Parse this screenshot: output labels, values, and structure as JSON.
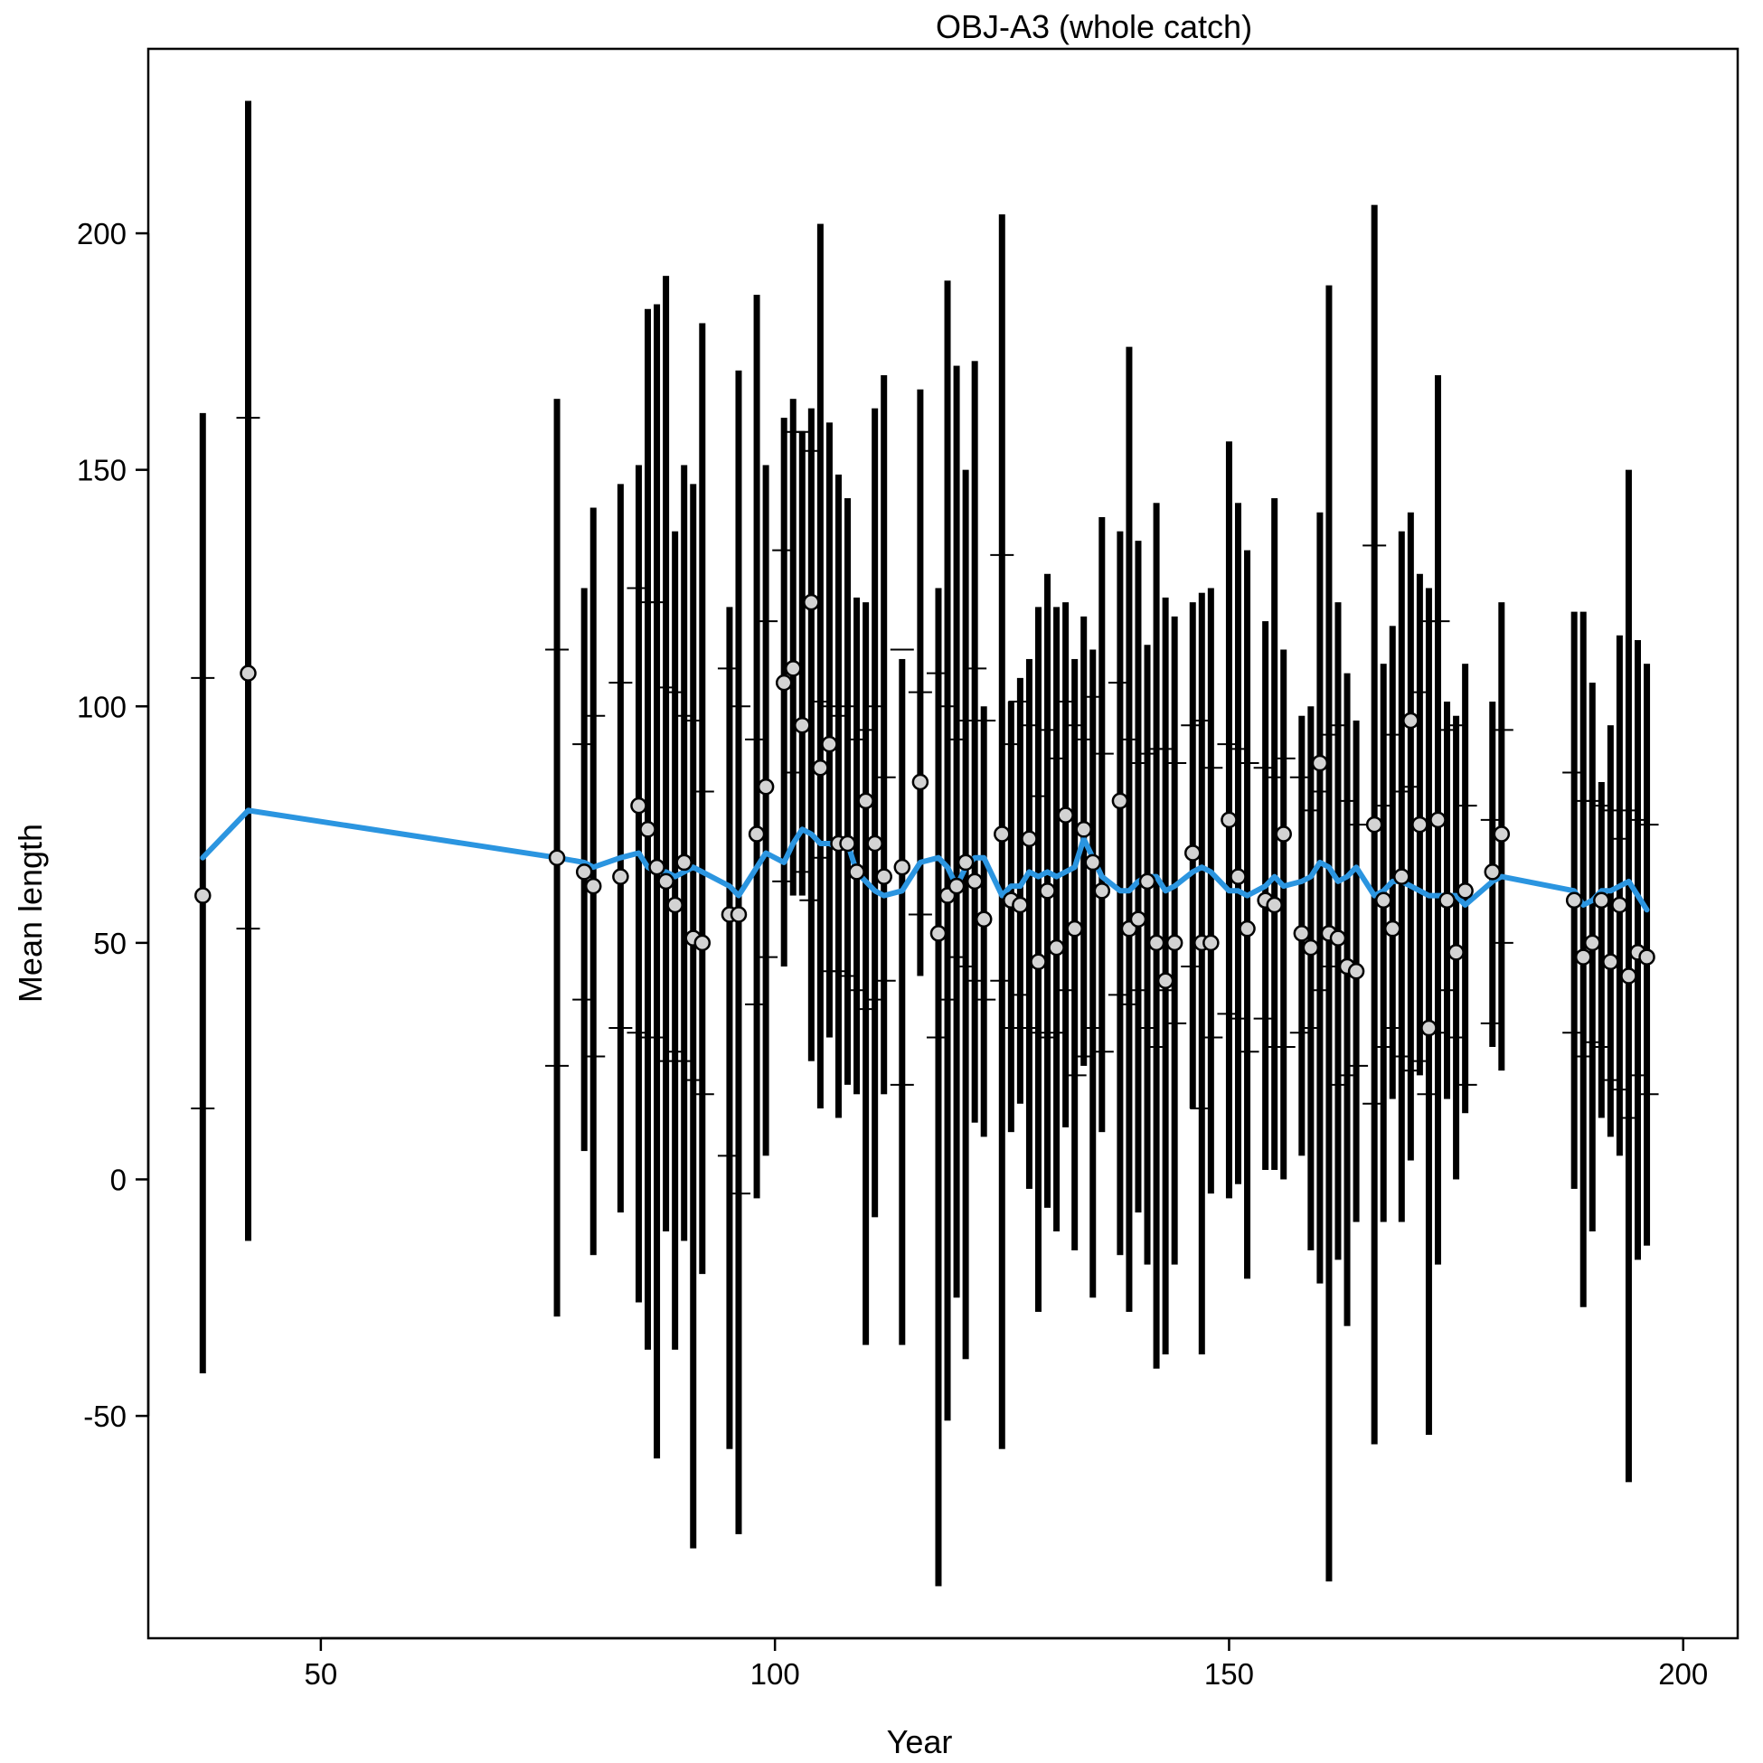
{
  "chart_data": {
    "type": "scatter",
    "title": "OBJ-A3 (whole catch)",
    "xlabel": "Year",
    "ylabel": "Mean length",
    "xlim": [
      31,
      206
    ],
    "ylim": [
      -97,
      239
    ],
    "xticks": [
      50,
      100,
      150,
      200
    ],
    "yticks": [
      -50,
      0,
      50,
      100,
      150,
      200
    ],
    "xtick_labels": [
      "50",
      "100",
      "150",
      "200"
    ],
    "ytick_labels": [
      "-50",
      "0",
      "50",
      "100",
      "150",
      "200"
    ],
    "grid": false,
    "legend": "none",
    "colors": {
      "fit_line": "#2b95e0",
      "bars": "#000000",
      "points_fill": "#d3d3d3",
      "points_edge": "#000000"
    },
    "series": [
      {
        "kind": "observed",
        "x": [
          37,
          42,
          76,
          79,
          80,
          83,
          85,
          86,
          87,
          88,
          89,
          90,
          91,
          92,
          95,
          96,
          98,
          99,
          101,
          102,
          103,
          104,
          105,
          106,
          107,
          108,
          109,
          110,
          111,
          112,
          114,
          116,
          118,
          119,
          120,
          121,
          122,
          123,
          125,
          126,
          127,
          128,
          129,
          130,
          131,
          132,
          133,
          134,
          135,
          136,
          138,
          139,
          140,
          141,
          142,
          143,
          144,
          146,
          147,
          148,
          150,
          151,
          152,
          154,
          155,
          156,
          158,
          159,
          160,
          161,
          162,
          163,
          164,
          166,
          167,
          168,
          169,
          170,
          171,
          172,
          173,
          174,
          175,
          176,
          179,
          180,
          188,
          189,
          190,
          191,
          192,
          193,
          194,
          195,
          196
        ],
        "y": [
          60,
          107,
          68,
          65,
          62,
          64,
          79,
          74,
          66,
          63,
          58,
          67,
          51,
          50,
          56,
          56,
          73,
          83,
          105,
          108,
          96,
          122,
          87,
          92,
          71,
          71,
          65,
          80,
          71,
          64,
          66,
          84,
          52,
          60,
          62,
          67,
          63,
          55,
          73,
          59,
          58,
          72,
          46,
          61,
          49,
          77,
          53,
          74,
          67,
          61,
          80,
          53,
          55,
          63,
          50,
          42,
          50,
          69,
          50,
          50,
          76,
          64,
          53,
          59,
          58,
          73,
          52,
          49,
          88,
          52,
          51,
          45,
          44,
          75,
          59,
          53,
          64,
          97,
          75,
          32,
          76,
          59,
          48,
          61,
          65,
          73,
          59,
          47,
          50,
          59,
          46,
          58,
          43,
          48,
          47
        ],
        "whisker_low": [
          -41,
          -13,
          -29,
          6,
          -16,
          -7,
          -26,
          -36,
          -59,
          -11,
          -36,
          -13,
          -78,
          -20,
          -57,
          -75,
          -4,
          5,
          45,
          60,
          60,
          25,
          15,
          30,
          13,
          20,
          18,
          -35,
          -8,
          18,
          -35,
          43,
          -86,
          -51,
          -25,
          -38,
          12,
          9,
          -57,
          10,
          16,
          -2,
          -28,
          -6,
          -11,
          11,
          -15,
          24,
          -25,
          10,
          -16,
          -28,
          -7,
          -18,
          -40,
          -37,
          -18,
          15,
          -37,
          -3,
          -4,
          -1,
          -21,
          2,
          2,
          0,
          5,
          -15,
          -22,
          -85,
          -17,
          -31,
          -9,
          -56,
          -9,
          17,
          -9,
          4,
          22,
          -54,
          -18,
          17,
          0,
          14,
          28,
          23,
          -2,
          -27,
          -11,
          13,
          9,
          5,
          -64,
          -17,
          -14
        ],
        "whisker_high": [
          162,
          228,
          165,
          125,
          142,
          147,
          151,
          184,
          185,
          191,
          137,
          151,
          147,
          181,
          121,
          171,
          187,
          151,
          161,
          165,
          158,
          163,
          202,
          160,
          149,
          144,
          123,
          122,
          163,
          170,
          110,
          167,
          125,
          190,
          172,
          150,
          173,
          100,
          204,
          101,
          106,
          110,
          121,
          128,
          121,
          122,
          110,
          119,
          112,
          140,
          137,
          176,
          135,
          113,
          143,
          123,
          119,
          122,
          124,
          125,
          156,
          143,
          133,
          118,
          144,
          112,
          98,
          100,
          141,
          189,
          122,
          107,
          97,
          206,
          109,
          117,
          137,
          141,
          128,
          125,
          170,
          101,
          98,
          109,
          101,
          122,
          120,
          120,
          105,
          84,
          96,
          115,
          150,
          114,
          109
        ],
        "mark_upper": [
          106,
          161,
          112,
          92,
          98,
          105,
          125,
          122,
          122,
          104,
          103,
          98,
          97,
          82,
          108,
          100,
          93,
          118,
          133,
          158,
          158,
          154,
          101,
          100,
          98,
          100,
          93,
          95,
          100,
          85,
          112,
          103,
          107,
          100,
          93,
          97,
          108,
          97,
          132,
          92,
          101,
          96,
          81,
          95,
          89,
          101,
          96,
          93,
          102,
          90,
          105,
          93,
          88,
          90,
          91,
          91,
          88,
          96,
          97,
          87,
          92,
          91,
          88,
          87,
          85,
          89,
          85,
          78,
          82,
          94,
          96,
          80,
          75,
          134,
          79,
          94,
          82,
          83,
          103,
          118,
          118,
          95,
          96,
          79,
          76,
          95,
          86,
          80,
          80,
          79,
          78,
          72,
          78,
          76,
          75
        ],
        "mark_lower": [
          15,
          53,
          24,
          38,
          26,
          32,
          31,
          30,
          30,
          25,
          27,
          25,
          21,
          18,
          5,
          -3,
          37,
          47,
          63,
          86,
          65,
          59,
          68,
          44,
          44,
          43,
          40,
          36,
          38,
          42,
          20,
          56,
          30,
          38,
          47,
          45,
          42,
          38,
          42,
          32,
          39,
          32,
          31,
          30,
          31,
          40,
          22,
          26,
          32,
          27,
          39,
          37,
          40,
          32,
          28,
          40,
          33,
          45,
          15,
          30,
          35,
          34,
          27,
          34,
          28,
          28,
          31,
          32,
          40,
          45,
          20,
          22,
          24,
          16,
          28,
          32,
          26,
          23,
          25,
          18,
          31,
          40,
          30,
          20,
          33,
          50,
          31,
          26,
          29,
          28,
          21,
          19,
          13,
          22,
          18
        ]
      },
      {
        "kind": "fitted",
        "x": [
          37,
          42,
          76,
          79,
          80,
          83,
          85,
          86,
          87,
          88,
          89,
          90,
          91,
          92,
          95,
          96,
          98,
          99,
          101,
          102,
          103,
          104,
          105,
          106,
          107,
          108,
          109,
          110,
          111,
          112,
          114,
          116,
          118,
          119,
          120,
          121,
          122,
          123,
          125,
          126,
          127,
          128,
          129,
          130,
          131,
          132,
          133,
          134,
          135,
          136,
          138,
          139,
          140,
          141,
          142,
          143,
          144,
          146,
          147,
          148,
          150,
          151,
          152,
          154,
          155,
          156,
          158,
          159,
          160,
          161,
          162,
          163,
          164,
          166,
          167,
          168,
          169,
          170,
          171,
          172,
          173,
          174,
          175,
          176,
          179,
          180,
          188,
          189,
          190,
          191,
          192,
          193,
          194,
          195,
          196
        ],
        "y": [
          68,
          78,
          68,
          67,
          66,
          68,
          69,
          66,
          65,
          65,
          64,
          65,
          66,
          65,
          62,
          60,
          66,
          69,
          67,
          71,
          74,
          73,
          71,
          71,
          70,
          71,
          65,
          63,
          61,
          60,
          61,
          67,
          68,
          66,
          62,
          66,
          68,
          68,
          60,
          62,
          62,
          65,
          64,
          65,
          64,
          65,
          66,
          72,
          68,
          64,
          61,
          61,
          63,
          64,
          64,
          61,
          62,
          65,
          66,
          65,
          61,
          61,
          60,
          62,
          64,
          62,
          63,
          64,
          67,
          66,
          63,
          64,
          66,
          60,
          61,
          63,
          63,
          62,
          61,
          60,
          60,
          60,
          60,
          58,
          63,
          64,
          61,
          58,
          59,
          61,
          61,
          62,
          63,
          60,
          57
        ]
      }
    ]
  }
}
